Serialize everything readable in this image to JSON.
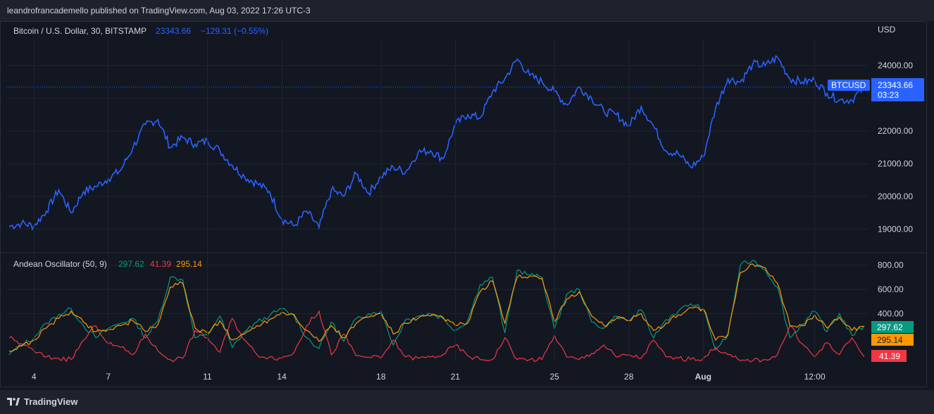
{
  "header": {
    "publisher_line": "leandrofrancademello published on TradingView.com, Aug 03, 2022 17:26 UTC-3"
  },
  "footer": {
    "brand": "TradingView"
  },
  "colors": {
    "background": "#131722",
    "grid": "#1f2430",
    "price_line": "#2962ff",
    "green": "#089981",
    "red": "#f23645",
    "orange": "#ff9800",
    "axis_text": "#d1d4dc"
  },
  "chart_data": [
    {
      "type": "line",
      "legend": {
        "title": "Bitcoin / U.S. Dollar, 30, BITSTAMP",
        "last": "23343.66",
        "change": "−129.31 (−0.55%)"
      },
      "y_unit": "USD",
      "ylim": [
        18300,
        24800
      ],
      "y_ticks": [
        "24000.00",
        "23000.00",
        "22000.00",
        "21000.00",
        "20000.00",
        "19000.00"
      ],
      "x_ticks": [
        "4",
        "7",
        "11",
        "14",
        "18",
        "21",
        "25",
        "28",
        "Aug",
        "12:00"
      ],
      "series": [
        {
          "name": "BTCUSD",
          "price_label": "23343.66",
          "countdown": "03:23",
          "x": [
            "Jul 3 12:00",
            "Jul 3 18:00",
            "Jul 4 00:00",
            "Jul 4 12:00",
            "Jul 5 00:00",
            "Jul 5 12:00",
            "Jul 5 18:00",
            "Jul 6 00:00",
            "Jul 6 12:00",
            "Jul 7 00:00",
            "Jul 7 12:00",
            "Jul 7 18:00",
            "Jul 8 00:00",
            "Jul 8 06:00",
            "Jul 8 12:00",
            "Jul 8 18:00",
            "Jul 9 00:00",
            "Jul 9 12:00",
            "Jul 10 00:00",
            "Jul 10 12:00",
            "Jul 11 00:00",
            "Jul 11 12:00",
            "Jul 12 00:00",
            "Jul 12 12:00",
            "Jul 13 00:00",
            "Jul 13 06:00",
            "Jul 13 12:00",
            "Jul 13 18:00",
            "Jul 14 00:00",
            "Jul 14 12:00",
            "Jul 15 00:00",
            "Jul 15 12:00",
            "Jul 16 00:00",
            "Jul 16 12:00",
            "Jul 17 00:00",
            "Jul 17 12:00",
            "Jul 18 00:00",
            "Jul 18 12:00",
            "Jul 19 00:00",
            "Jul 19 12:00",
            "Jul 20 00:00",
            "Jul 20 06:00",
            "Jul 20 12:00",
            "Jul 20 18:00",
            "Jul 21 00:00",
            "Jul 21 12:00",
            "Jul 22 00:00",
            "Jul 22 12:00",
            "Jul 23 00:00",
            "Jul 23 12:00",
            "Jul 24 00:00",
            "Jul 24 12:00",
            "Jul 25 00:00",
            "Jul 25 12:00",
            "Jul 26 00:00",
            "Jul 26 12:00",
            "Jul 27 00:00",
            "Jul 27 12:00",
            "Jul 28 00:00",
            "Jul 28 12:00",
            "Jul 29 00:00",
            "Jul 29 12:00",
            "Jul 30 00:00",
            "Jul 30 12:00",
            "Jul 31 00:00",
            "Jul 31 12:00",
            "Aug 1 00:00",
            "Aug 1 12:00",
            "Aug 2 00:00",
            "Aug 2 12:00"
          ],
          "y": [
            19080,
            19180,
            19100,
            19550,
            20200,
            19500,
            20150,
            20300,
            20550,
            20800,
            21500,
            22200,
            22350,
            21500,
            21800,
            21600,
            21700,
            21400,
            20950,
            20600,
            20400,
            20150,
            19300,
            19100,
            19550,
            19050,
            20200,
            20000,
            20700,
            20100,
            20600,
            20900,
            20750,
            21350,
            21400,
            21150,
            22200,
            22500,
            22400,
            23200,
            23600,
            24200,
            23700,
            23500,
            23200,
            22800,
            23350,
            23000,
            22600,
            22500,
            22150,
            22750,
            22150,
            21400,
            21300,
            20900,
            21200,
            22700,
            23600,
            23500,
            24050,
            24000,
            24250,
            23600,
            23500,
            23550,
            23150,
            22950,
            22950,
            23343.66
          ]
        }
      ]
    },
    {
      "type": "line",
      "legend": {
        "title": "Andean Oscillator (50, 9)"
      },
      "ylim": [
        0,
        880
      ],
      "y_ticks": [
        "800.00",
        "600.00",
        "400.00"
      ],
      "series": [
        {
          "name": "Bull",
          "last": "297.62",
          "color": "#089981",
          "values": [
            60,
            140,
            200,
            320,
            390,
            440,
            300,
            200,
            280,
            320,
            360,
            200,
            340,
            700,
            680,
            200,
            220,
            380,
            120,
            250,
            330,
            380,
            440,
            380,
            200,
            110,
            330,
            170,
            360,
            400,
            420,
            140,
            350,
            380,
            400,
            360,
            260,
            340,
            640,
            700,
            240,
            760,
            720,
            700,
            270,
            560,
            600,
            330,
            280,
            380,
            340,
            430,
            200,
            350,
            420,
            480,
            440,
            100,
            220,
            800,
            840,
            760,
            620,
            200,
            310,
            420,
            250,
            400,
            220,
            297.62
          ]
        },
        {
          "name": "Bear",
          "last": "41.39",
          "color": "#f23645",
          "values": [
            200,
            150,
            90,
            40,
            30,
            20,
            180,
            300,
            150,
            120,
            60,
            230,
            90,
            20,
            30,
            260,
            200,
            80,
            360,
            180,
            60,
            40,
            30,
            80,
            300,
            420,
            60,
            230,
            50,
            40,
            30,
            180,
            40,
            30,
            40,
            60,
            140,
            50,
            20,
            20,
            200,
            20,
            20,
            20,
            220,
            40,
            20,
            70,
            140,
            40,
            60,
            30,
            180,
            40,
            30,
            20,
            30,
            120,
            60,
            10,
            10,
            20,
            60,
            300,
            150,
            40,
            160,
            60,
            200,
            41.39
          ]
        },
        {
          "name": "Signal",
          "last": "295.14",
          "color": "#ff9800",
          "values": [
            90,
            130,
            180,
            280,
            360,
            420,
            330,
            250,
            270,
            300,
            340,
            250,
            310,
            620,
            650,
            280,
            240,
            340,
            180,
            230,
            300,
            350,
            410,
            390,
            260,
            170,
            300,
            200,
            320,
            370,
            400,
            230,
            320,
            360,
            380,
            370,
            300,
            320,
            580,
            670,
            320,
            700,
            710,
            690,
            330,
            520,
            580,
            380,
            300,
            360,
            340,
            400,
            260,
            320,
            390,
            450,
            440,
            180,
            230,
            740,
            810,
            780,
            650,
            300,
            300,
            390,
            280,
            370,
            260,
            295.14
          ]
        }
      ]
    }
  ]
}
